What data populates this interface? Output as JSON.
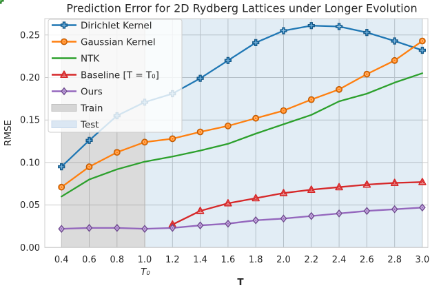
{
  "chart_data": {
    "type": "line",
    "title": "Prediction Error for 2D Rydberg Lattices under Longer Evolution",
    "xlabel": "T",
    "ylabel": "RMSE",
    "secondary_xlabel": "T₀",
    "xlim": [
      0.28,
      3.04
    ],
    "ylim": [
      0,
      0.2693
    ],
    "grid": true,
    "legend_position": "upper left",
    "colors": {
      "text": "#262626",
      "grid": "#cccccc",
      "spine": "#cfcfcf",
      "legend_border": "#cccccc",
      "legend_bg": "rgba(255,255,255,0.8)"
    },
    "x": [
      0.4,
      0.6,
      0.8,
      1.0,
      1.2,
      1.4,
      1.6,
      1.8,
      2.0,
      2.2,
      2.4,
      2.6,
      2.8,
      3.0
    ],
    "series": [
      {
        "name": "Dirichlet Kernel",
        "color": "#1f77b4",
        "marker": "plus",
        "values": [
          0.095,
          0.126,
          0.155,
          0.171,
          0.181,
          0.199,
          0.22,
          0.241,
          0.255,
          0.261,
          0.26,
          0.253,
          0.243,
          0.232
        ]
      },
      {
        "name": "Gaussian Kernel",
        "color": "#ff7f0e",
        "marker": "circle",
        "values": [
          0.071,
          0.095,
          0.112,
          0.124,
          0.128,
          0.136,
          0.143,
          0.152,
          0.161,
          0.174,
          0.186,
          0.204,
          0.22,
          0.243
        ]
      },
      {
        "name": "NTK",
        "color": "#2ca02c",
        "marker": "x",
        "values": [
          0.06,
          0.08,
          0.092,
          0.101,
          0.107,
          0.114,
          0.122,
          0.134,
          0.145,
          0.156,
          0.172,
          0.181,
          0.194,
          0.205
        ]
      },
      {
        "name": "Baseline [T = T₀]",
        "color": "#d62728",
        "marker": "triangle",
        "values": [
          null,
          null,
          null,
          null,
          0.027,
          0.043,
          0.052,
          0.058,
          0.064,
          0.068,
          0.071,
          0.074,
          0.076,
          0.077
        ]
      },
      {
        "name": "Ours",
        "color": "#9467bd",
        "marker": "diamond",
        "values": [
          0.022,
          0.023,
          0.023,
          0.022,
          0.023,
          0.026,
          0.028,
          0.032,
          0.034,
          0.037,
          0.04,
          0.043,
          0.045,
          0.047
        ]
      }
    ],
    "spans": [
      {
        "name": "Train",
        "from": 0.4,
        "to": 1.005,
        "fill": "rgba(127,127,127,0.28)",
        "swatch": "#d6d6d6",
        "swatch_edge": "#c2c2c2"
      },
      {
        "name": "Test",
        "from": 1.005,
        "to": 3.0,
        "fill": "rgba(31,119,180,0.13)",
        "swatch": "#dbe7f3",
        "swatch_edge": "#c8daec"
      }
    ],
    "xticks": {
      "values": [
        0.4,
        0.6,
        0.8,
        1.0,
        1.2,
        1.4,
        1.6,
        1.8,
        2.0,
        2.2,
        2.4,
        2.6,
        2.8,
        3.0
      ],
      "labels": [
        "0.4",
        "0.6",
        "0.8",
        "1.0",
        "1.2",
        "1.4",
        "1.6",
        "1.8",
        "2.0",
        "2.2",
        "2.4",
        "2.6",
        "2.8",
        "3.0"
      ]
    },
    "yticks": {
      "values": [
        0.0,
        0.05,
        0.1,
        0.15,
        0.2,
        0.25
      ],
      "labels": [
        "0.00",
        "0.05",
        "0.10",
        "0.15",
        "0.20",
        "0.25"
      ]
    },
    "t0_marker_x": 1.0
  }
}
